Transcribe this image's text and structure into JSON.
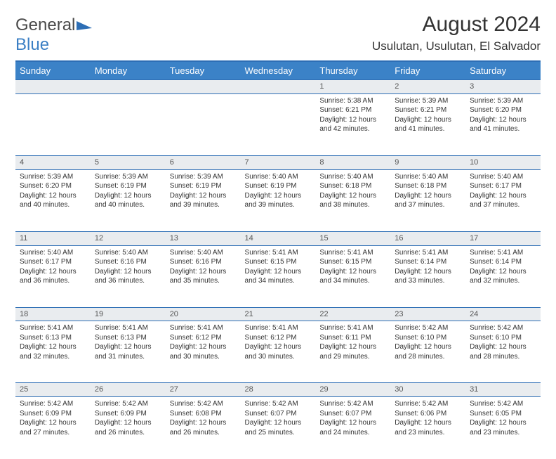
{
  "brand": {
    "part1": "General",
    "part2": "Blue"
  },
  "title": "August 2024",
  "location": "Usulutan, Usulutan, El Salvador",
  "colors": {
    "header_bg": "#3b82c7",
    "header_border": "#2d6eb5",
    "daynum_bg": "#e9ecef",
    "text": "#333333",
    "white": "#ffffff"
  },
  "weekdays": [
    "Sunday",
    "Monday",
    "Tuesday",
    "Wednesday",
    "Thursday",
    "Friday",
    "Saturday"
  ],
  "weeks": [
    [
      null,
      null,
      null,
      null,
      {
        "n": "1",
        "sr": "5:38 AM",
        "ss": "6:21 PM",
        "dl": "12 hours and 42 minutes."
      },
      {
        "n": "2",
        "sr": "5:39 AM",
        "ss": "6:21 PM",
        "dl": "12 hours and 41 minutes."
      },
      {
        "n": "3",
        "sr": "5:39 AM",
        "ss": "6:20 PM",
        "dl": "12 hours and 41 minutes."
      }
    ],
    [
      {
        "n": "4",
        "sr": "5:39 AM",
        "ss": "6:20 PM",
        "dl": "12 hours and 40 minutes."
      },
      {
        "n": "5",
        "sr": "5:39 AM",
        "ss": "6:19 PM",
        "dl": "12 hours and 40 minutes."
      },
      {
        "n": "6",
        "sr": "5:39 AM",
        "ss": "6:19 PM",
        "dl": "12 hours and 39 minutes."
      },
      {
        "n": "7",
        "sr": "5:40 AM",
        "ss": "6:19 PM",
        "dl": "12 hours and 39 minutes."
      },
      {
        "n": "8",
        "sr": "5:40 AM",
        "ss": "6:18 PM",
        "dl": "12 hours and 38 minutes."
      },
      {
        "n": "9",
        "sr": "5:40 AM",
        "ss": "6:18 PM",
        "dl": "12 hours and 37 minutes."
      },
      {
        "n": "10",
        "sr": "5:40 AM",
        "ss": "6:17 PM",
        "dl": "12 hours and 37 minutes."
      }
    ],
    [
      {
        "n": "11",
        "sr": "5:40 AM",
        "ss": "6:17 PM",
        "dl": "12 hours and 36 minutes."
      },
      {
        "n": "12",
        "sr": "5:40 AM",
        "ss": "6:16 PM",
        "dl": "12 hours and 36 minutes."
      },
      {
        "n": "13",
        "sr": "5:40 AM",
        "ss": "6:16 PM",
        "dl": "12 hours and 35 minutes."
      },
      {
        "n": "14",
        "sr": "5:41 AM",
        "ss": "6:15 PM",
        "dl": "12 hours and 34 minutes."
      },
      {
        "n": "15",
        "sr": "5:41 AM",
        "ss": "6:15 PM",
        "dl": "12 hours and 34 minutes."
      },
      {
        "n": "16",
        "sr": "5:41 AM",
        "ss": "6:14 PM",
        "dl": "12 hours and 33 minutes."
      },
      {
        "n": "17",
        "sr": "5:41 AM",
        "ss": "6:14 PM",
        "dl": "12 hours and 32 minutes."
      }
    ],
    [
      {
        "n": "18",
        "sr": "5:41 AM",
        "ss": "6:13 PM",
        "dl": "12 hours and 32 minutes."
      },
      {
        "n": "19",
        "sr": "5:41 AM",
        "ss": "6:13 PM",
        "dl": "12 hours and 31 minutes."
      },
      {
        "n": "20",
        "sr": "5:41 AM",
        "ss": "6:12 PM",
        "dl": "12 hours and 30 minutes."
      },
      {
        "n": "21",
        "sr": "5:41 AM",
        "ss": "6:12 PM",
        "dl": "12 hours and 30 minutes."
      },
      {
        "n": "22",
        "sr": "5:41 AM",
        "ss": "6:11 PM",
        "dl": "12 hours and 29 minutes."
      },
      {
        "n": "23",
        "sr": "5:42 AM",
        "ss": "6:10 PM",
        "dl": "12 hours and 28 minutes."
      },
      {
        "n": "24",
        "sr": "5:42 AM",
        "ss": "6:10 PM",
        "dl": "12 hours and 28 minutes."
      }
    ],
    [
      {
        "n": "25",
        "sr": "5:42 AM",
        "ss": "6:09 PM",
        "dl": "12 hours and 27 minutes."
      },
      {
        "n": "26",
        "sr": "5:42 AM",
        "ss": "6:09 PM",
        "dl": "12 hours and 26 minutes."
      },
      {
        "n": "27",
        "sr": "5:42 AM",
        "ss": "6:08 PM",
        "dl": "12 hours and 26 minutes."
      },
      {
        "n": "28",
        "sr": "5:42 AM",
        "ss": "6:07 PM",
        "dl": "12 hours and 25 minutes."
      },
      {
        "n": "29",
        "sr": "5:42 AM",
        "ss": "6:07 PM",
        "dl": "12 hours and 24 minutes."
      },
      {
        "n": "30",
        "sr": "5:42 AM",
        "ss": "6:06 PM",
        "dl": "12 hours and 23 minutes."
      },
      {
        "n": "31",
        "sr": "5:42 AM",
        "ss": "6:05 PM",
        "dl": "12 hours and 23 minutes."
      }
    ]
  ],
  "labels": {
    "sunrise": "Sunrise:",
    "sunset": "Sunset:",
    "daylight": "Daylight:"
  }
}
